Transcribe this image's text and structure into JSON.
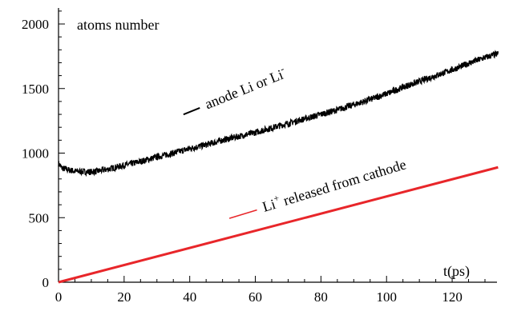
{
  "chart_data": {
    "type": "line",
    "title": "",
    "ylabel": "atoms number",
    "xlabel": "t(ps)",
    "xlim": [
      0,
      135
    ],
    "ylim": [
      0,
      2000
    ],
    "x_ticks": [
      0,
      20,
      40,
      60,
      80,
      100,
      120
    ],
    "y_ticks": [
      0,
      500,
      1000,
      1500,
      2000
    ],
    "x_tick_labels": [
      "0",
      "20",
      "40",
      "60",
      "80",
      "100",
      "120"
    ],
    "y_tick_labels": [
      "0",
      "500",
      "1000",
      "1500",
      "2000"
    ],
    "grid": false,
    "legend": "inline annotations",
    "series": [
      {
        "name": "anode Li or Li⁻",
        "label_main": "anode Li or Li",
        "label_sup": "-",
        "color": "#000000",
        "x": [
          0,
          1,
          3,
          5,
          8,
          10,
          12,
          15,
          20,
          25,
          30,
          35,
          40,
          45,
          50,
          55,
          60,
          65,
          70,
          75,
          80,
          85,
          90,
          95,
          100,
          105,
          110,
          115,
          120,
          125,
          130,
          134
        ],
        "y": [
          920,
          885,
          870,
          860,
          855,
          855,
          860,
          875,
          905,
          935,
          970,
          1000,
          1035,
          1065,
          1100,
          1130,
          1160,
          1195,
          1230,
          1265,
          1300,
          1335,
          1375,
          1415,
          1460,
          1510,
          1555,
          1600,
          1645,
          1695,
          1740,
          1770
        ]
      },
      {
        "name": "Li⁺ released from cathode",
        "label_main": "Li",
        "label_sup": "+",
        "label_rest": " released from cathode",
        "color": "#e8262a",
        "x": [
          0,
          134
        ],
        "y": [
          0,
          890
        ]
      }
    ]
  }
}
